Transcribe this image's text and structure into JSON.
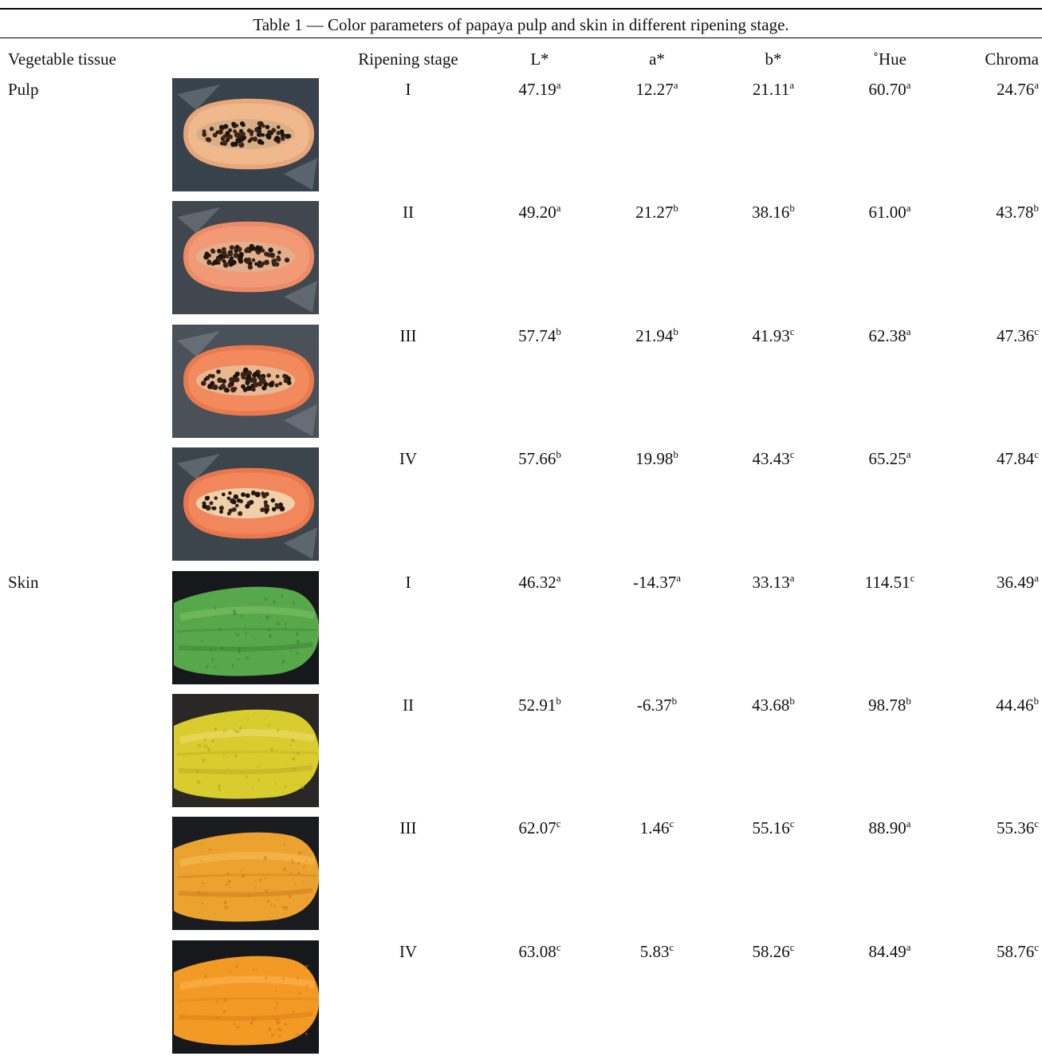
{
  "caption": "Table 1 — Color parameters of papaya pulp and skin in different ripening stage.",
  "headers": {
    "tissue": "Vegetable tissue",
    "stage": "Ripening stage",
    "L": "L*",
    "a": "a*",
    "b": "b*",
    "hue": "˚Hue",
    "chroma": "Chroma"
  },
  "rows": [
    {
      "tissue": "Pulp",
      "photo": "papaya-pulp-stage-1-photo",
      "stage": "I",
      "L": "47.19",
      "L_sup": "a",
      "a": "12.27",
      "a_sup": "a",
      "b": "21.11",
      "b_sup": "a",
      "hue": "60.70",
      "hue_sup": "a",
      "chroma": "24.76",
      "chroma_sup": "a"
    },
    {
      "tissue": "",
      "photo": "papaya-pulp-stage-2-photo",
      "stage": "II",
      "L": "49.20",
      "L_sup": "a",
      "a": "21.27",
      "a_sup": "b",
      "b": "38.16",
      "b_sup": "b",
      "hue": "61.00",
      "hue_sup": "a",
      "chroma": "43.78",
      "chroma_sup": "b"
    },
    {
      "tissue": "",
      "photo": "papaya-pulp-stage-3-photo",
      "stage": "III",
      "L": "57.74",
      "L_sup": "b",
      "a": "21.94",
      "a_sup": "b",
      "b": "41.93",
      "b_sup": "c",
      "hue": "62.38",
      "hue_sup": "a",
      "chroma": "47.36",
      "chroma_sup": "c"
    },
    {
      "tissue": "",
      "photo": "papaya-pulp-stage-4-photo",
      "stage": "IV",
      "L": "57.66",
      "L_sup": "b",
      "a": "19.98",
      "a_sup": "b",
      "b": "43.43",
      "b_sup": "c",
      "hue": "65.25",
      "hue_sup": "a",
      "chroma": "47.84",
      "chroma_sup": "c"
    },
    {
      "tissue": "Skin",
      "photo": "papaya-skin-stage-1-photo",
      "stage": "I",
      "L": "46.32",
      "L_sup": "a",
      "a": "-14.37",
      "a_sup": "a",
      "b": "33.13",
      "b_sup": "a",
      "hue": "114.51",
      "hue_sup": "c",
      "chroma": "36.49",
      "chroma_sup": "a"
    },
    {
      "tissue": "",
      "photo": "papaya-skin-stage-2-photo",
      "stage": "II",
      "L": "52.91",
      "L_sup": "b",
      "a": "-6.37",
      "a_sup": "b",
      "b": "43.68",
      "b_sup": "b",
      "hue": "98.78",
      "hue_sup": "b",
      "chroma": "44.46",
      "chroma_sup": "b"
    },
    {
      "tissue": "",
      "photo": "papaya-skin-stage-3-photo",
      "stage": "III",
      "L": "62.07",
      "L_sup": "c",
      "a": "1.46",
      "a_sup": "c",
      "b": "55.16",
      "b_sup": "c",
      "hue": "88.90",
      "hue_sup": "a",
      "chroma": "55.36",
      "chroma_sup": "c"
    },
    {
      "tissue": "",
      "photo": "papaya-skin-stage-4-photo",
      "stage": "IV",
      "L": "63.08",
      "L_sup": "c",
      "a": "5.83",
      "a_sup": "c",
      "b": "58.26",
      "b_sup": "c",
      "hue": "84.49",
      "hue_sup": "a",
      "chroma": "58.76",
      "chroma_sup": "c"
    }
  ]
}
